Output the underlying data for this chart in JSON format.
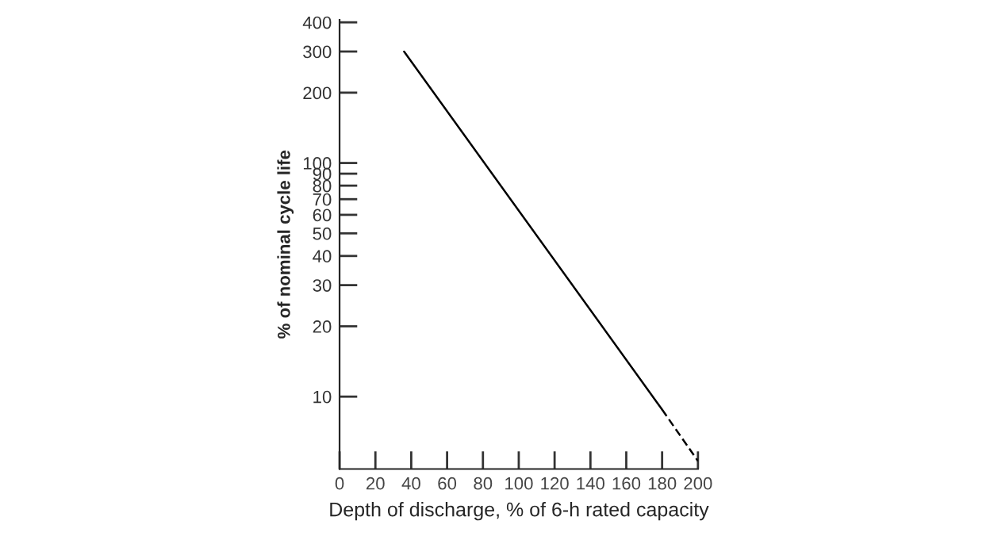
{
  "chart_data": {
    "type": "line",
    "xlabel": "Depth of discharge, % of 6-h rated capacity",
    "ylabel": "% of nominal cycle life",
    "log": "y",
    "series": [
      {
        "color": "#000000",
        "line_style": "solid",
        "x": [
          36,
          180
        ],
        "values": [
          300,
          8.8
        ]
      },
      {
        "color": "#000000",
        "line_style": "dashed",
        "x": [
          180,
          200
        ],
        "values": [
          8.8,
          5.3
        ]
      }
    ],
    "xlim": [
      0,
      200
    ],
    "xticks": [
      0,
      20,
      40,
      60,
      80,
      100,
      120,
      140,
      160,
      180,
      200
    ],
    "ylim": [
      4.9,
      410
    ],
    "yticks": [
      10,
      20,
      30,
      40,
      50,
      60,
      70,
      80,
      90,
      100,
      200,
      300,
      400
    ],
    "grid": false,
    "marker": "none"
  }
}
